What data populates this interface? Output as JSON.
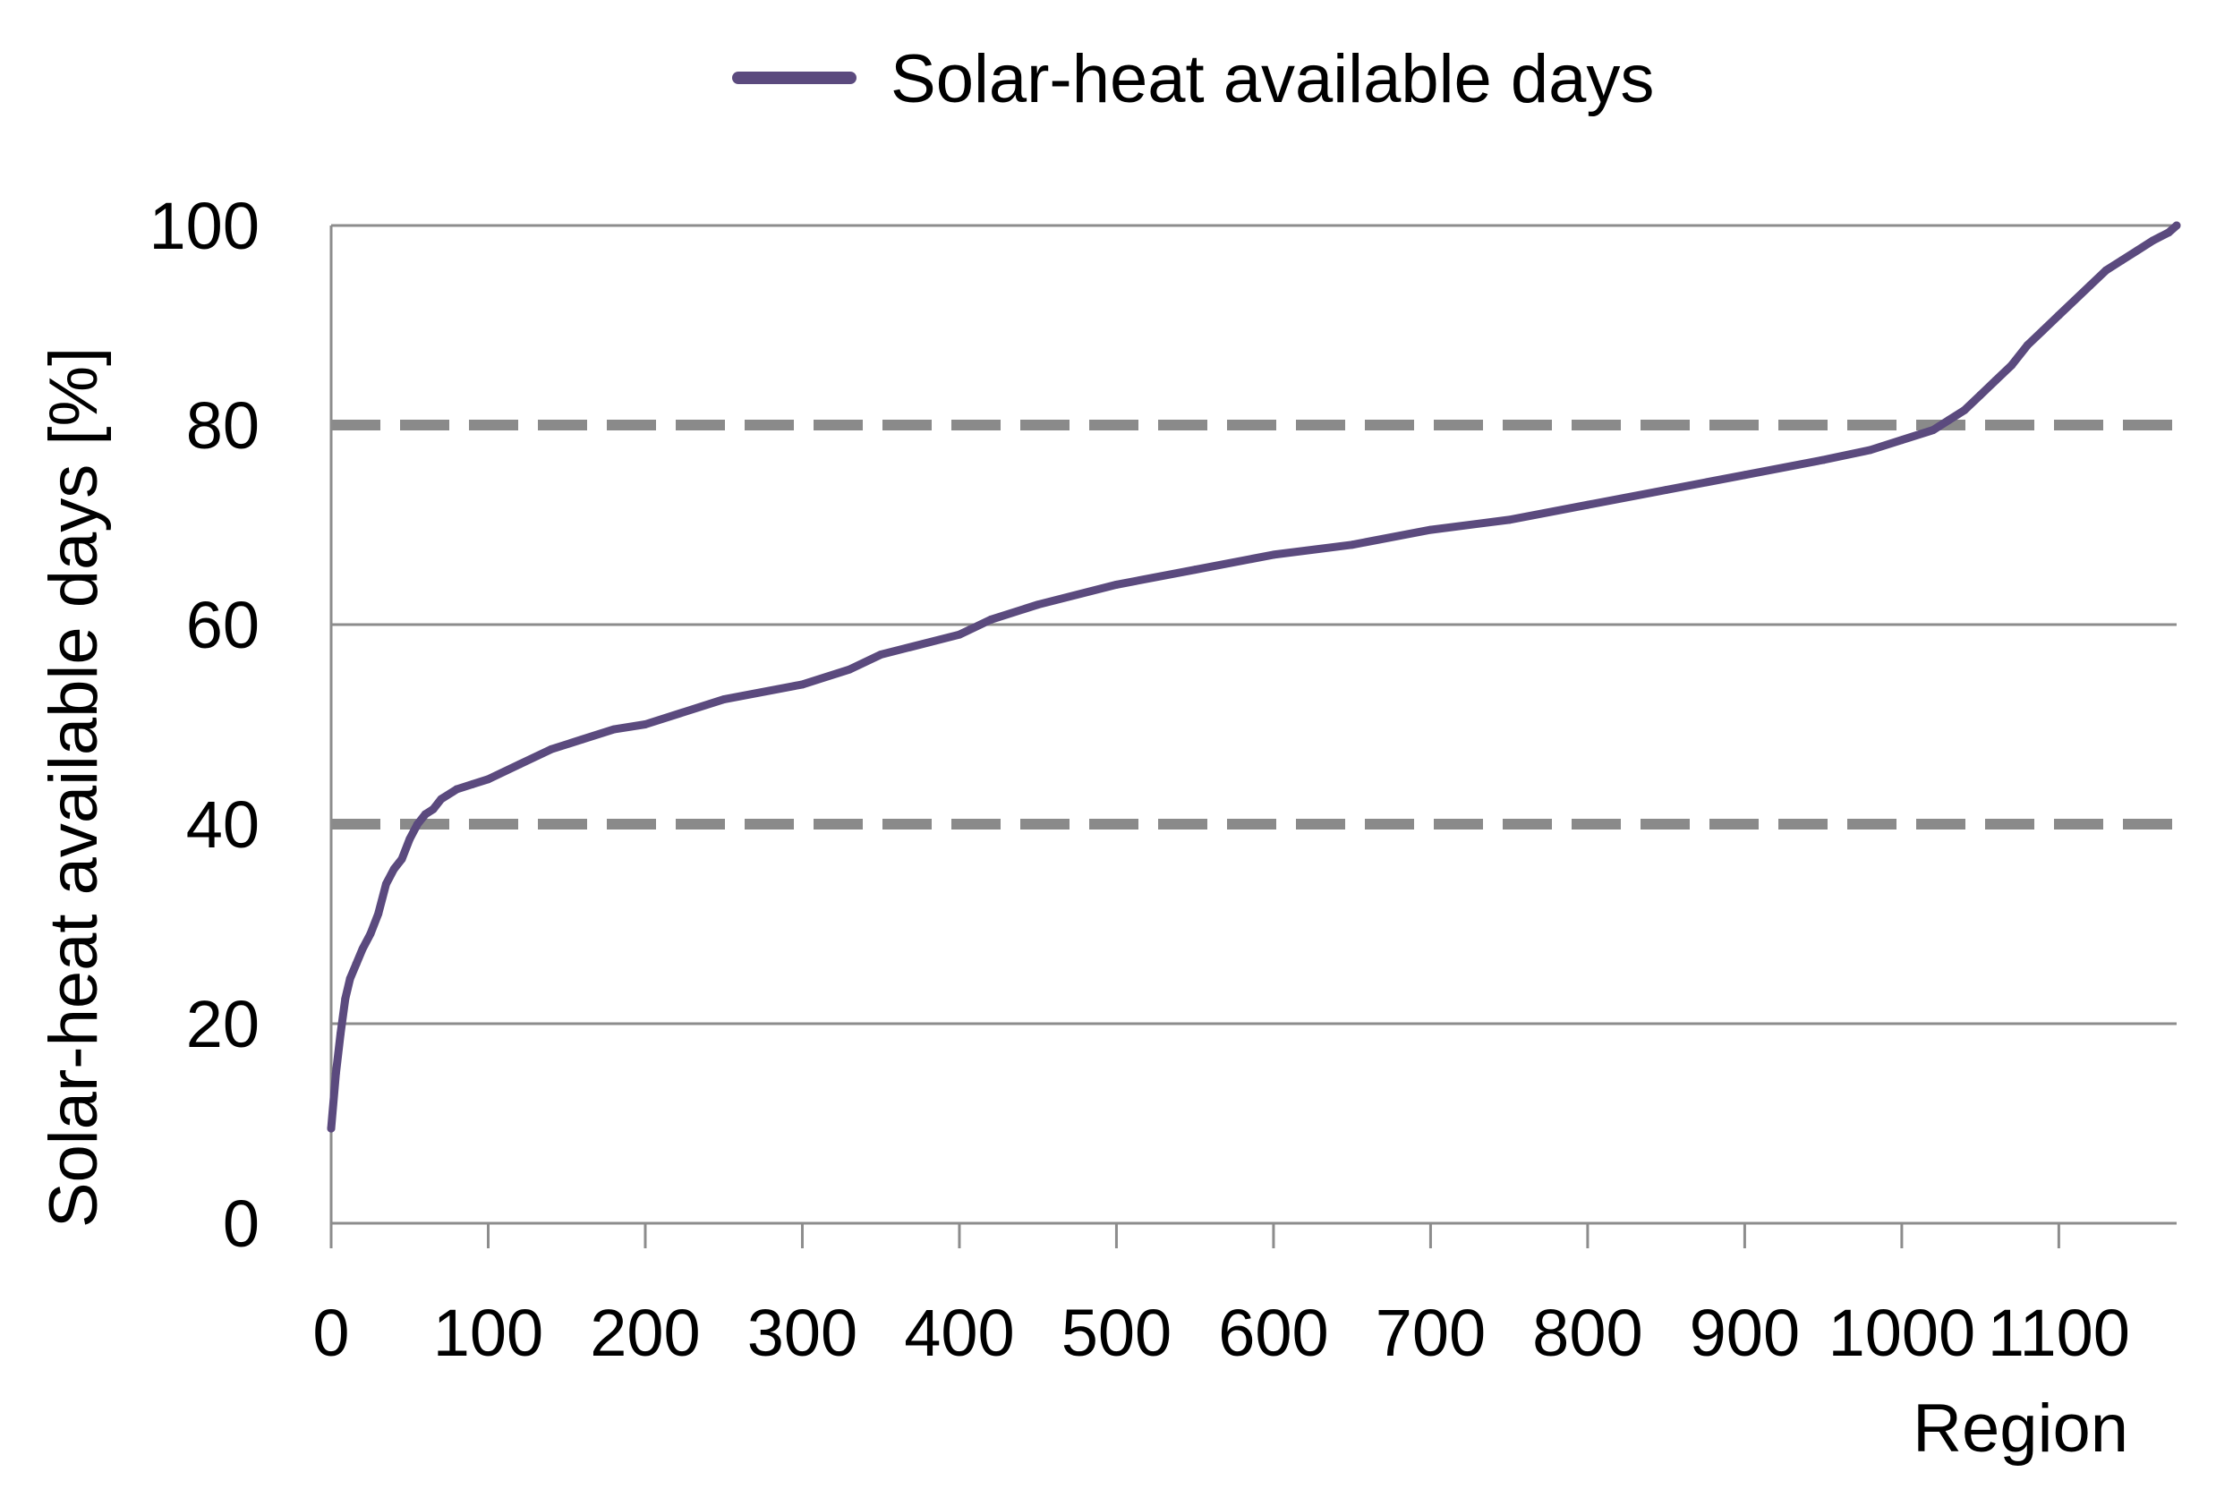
{
  "chart_data": {
    "type": "line",
    "title": "",
    "xlabel": "Region",
    "ylabel": "Solar-heat available days [%]",
    "xlim": [
      0,
      1175
    ],
    "ylim": [
      0,
      100
    ],
    "x_ticks": [
      0,
      100,
      200,
      300,
      400,
      500,
      600,
      700,
      800,
      900,
      1000,
      1100
    ],
    "x_tick_labels": [
      "0",
      "100",
      "200",
      "300",
      "400",
      "500",
      "600",
      "700",
      "800",
      "900",
      "1000",
      "1100"
    ],
    "y_ticks": [
      0,
      20,
      40,
      60,
      80,
      100
    ],
    "y_tick_labels": [
      "0",
      "20",
      "40",
      "60",
      "80",
      "100"
    ],
    "grid": true,
    "legend": {
      "position": "top-center",
      "entries": [
        "Solar-heat available days"
      ]
    },
    "reference_lines": [
      {
        "y": 40,
        "style": "dashed"
      },
      {
        "y": 80,
        "style": "dashed"
      }
    ],
    "series": [
      {
        "name": "Solar-heat available days",
        "color": "#5b4a7e",
        "x": [
          0,
          3,
          6,
          9,
          12,
          16,
          20,
          25,
          30,
          35,
          40,
          45,
          50,
          55,
          60,
          65,
          70,
          80,
          90,
          100,
          120,
          140,
          160,
          180,
          200,
          250,
          300,
          330,
          350,
          400,
          420,
          450,
          500,
          550,
          600,
          650,
          700,
          750,
          800,
          850,
          900,
          950,
          980,
          1000,
          1020,
          1030,
          1040,
          1050,
          1060,
          1070,
          1080,
          1090,
          1100,
          1110,
          1120,
          1130,
          1140,
          1150,
          1160,
          1170,
          1175
        ],
        "y": [
          9.5,
          15,
          19,
          22.5,
          24.5,
          26,
          27.5,
          29,
          31,
          34,
          35.5,
          36.5,
          38.5,
          40,
          41,
          41.5,
          42.5,
          43.5,
          44,
          44.5,
          46,
          47.5,
          48.5,
          49.5,
          50,
          52.5,
          54,
          55.5,
          57,
          59,
          60.5,
          62,
          64,
          65.5,
          67,
          68,
          69.5,
          70.5,
          72,
          73.5,
          75,
          76.5,
          77.5,
          78.5,
          79.5,
          80.5,
          81.5,
          83,
          84.5,
          86,
          88,
          89.5,
          91,
          92.5,
          94,
          95.5,
          96.5,
          97.5,
          98.5,
          99.3,
          100
        ]
      }
    ]
  }
}
